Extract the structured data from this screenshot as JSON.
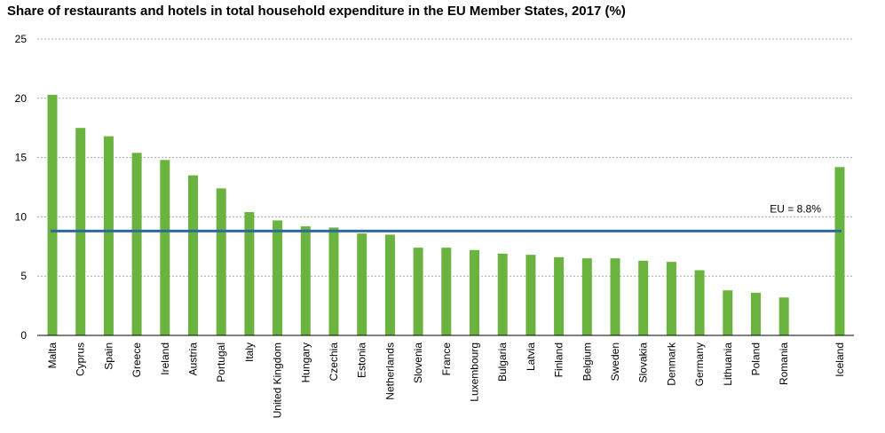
{
  "title": "Share of restaurants and hotels in total household expenditure in the EU Member States, 2017 (%)",
  "chart_data": {
    "type": "bar",
    "title": "Share of restaurants and hotels in total household expenditure in the EU Member States, 2017 (%)",
    "xlabel": "",
    "ylabel": "",
    "ylim": [
      0,
      25
    ],
    "yticks": [
      0,
      5,
      10,
      15,
      20,
      25
    ],
    "grid": true,
    "categories": [
      "Malta",
      "Cyprus",
      "Spain",
      "Greece",
      "Ireland",
      "Austria",
      "Portugal",
      "Italy",
      "United Kingdom",
      "Hungary",
      "Czechia",
      "Estonia",
      "Netherlands",
      "Slovenia",
      "France",
      "Luxembourg",
      "Bulgaria",
      "Latvia",
      "Finland",
      "Belgium",
      "Sweden",
      "Slovakia",
      "Denmark",
      "Germany",
      "Lithuania",
      "Poland",
      "Romania",
      "Iceland"
    ],
    "values": [
      20.3,
      17.5,
      16.8,
      15.4,
      14.8,
      13.5,
      12.4,
      10.4,
      9.7,
      9.2,
      9.1,
      8.6,
      8.5,
      7.4,
      7.4,
      7.2,
      6.9,
      6.8,
      6.6,
      6.5,
      6.5,
      6.3,
      6.2,
      5.5,
      3.8,
      3.6,
      3.2,
      14.2
    ],
    "group_gap_before": "Iceland",
    "bar_color": "#6ab33f",
    "reference_line": {
      "label": "EU = 8.8%",
      "value": 8.8,
      "color": "#2e6aa1"
    }
  }
}
